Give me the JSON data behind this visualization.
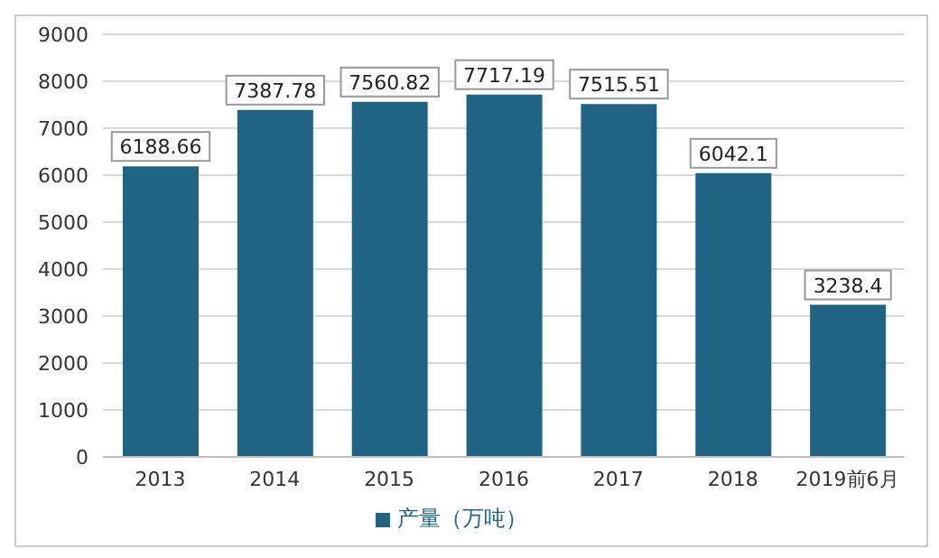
{
  "chart_data": {
    "type": "bar",
    "categories": [
      "2013",
      "2014",
      "2015",
      "2016",
      "2017",
      "2018",
      "2019前6月"
    ],
    "series": [
      {
        "name": "产量（万吨）",
        "color": "#1f6482",
        "values": [
          6188.66,
          7387.78,
          7560.82,
          7717.19,
          7515.51,
          6042.1,
          3238.4
        ]
      }
    ],
    "ylim": [
      0,
      9000
    ],
    "yticks": [
      0,
      1000,
      2000,
      3000,
      4000,
      5000,
      6000,
      7000,
      8000,
      9000
    ],
    "grid": "y",
    "legend": "bottom",
    "data_labels": true
  }
}
